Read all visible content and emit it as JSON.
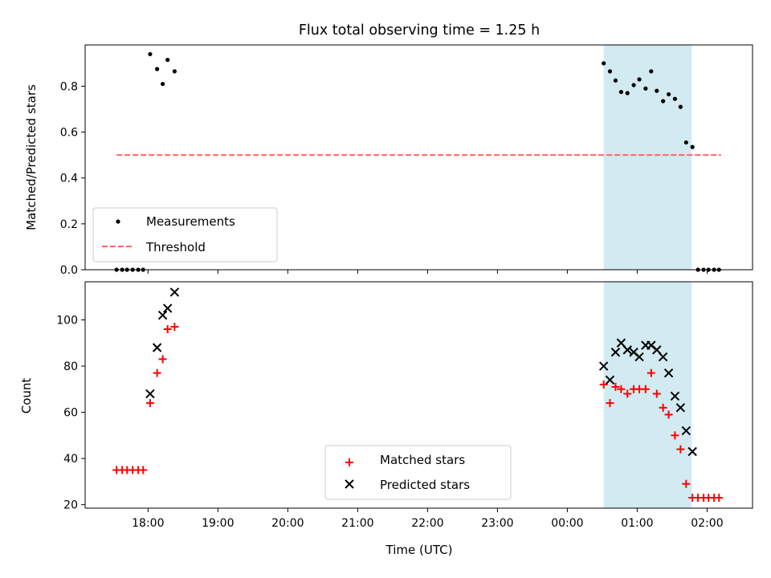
{
  "chart_data": [
    {
      "type": "scatter",
      "title": "Flux total observing time = 1.25 h",
      "xlabel": "",
      "ylabel": "Matched/Predicted stars",
      "x_unit": "hours since 17:00 UTC",
      "xlim": [
        0.1,
        9.65
      ],
      "ylim": [
        0.0,
        0.98
      ],
      "yticks": [
        "0.0",
        "0.2",
        "0.4",
        "0.6",
        "0.8"
      ],
      "ytick_values": [
        0.0,
        0.2,
        0.4,
        0.6,
        0.8
      ],
      "grid": false,
      "legend": "lower-left",
      "highlight_span": {
        "x0": 7.52,
        "x1": 8.78,
        "color": "#add8e6"
      },
      "series": [
        {
          "name": "Measurements",
          "kind": "dot",
          "color": "#000000",
          "x": [
            0.55,
            0.63,
            0.7,
            0.78,
            0.86,
            0.93,
            1.03,
            1.13,
            1.21,
            1.28,
            1.38,
            7.52,
            7.61,
            7.69,
            7.77,
            7.86,
            7.95,
            8.03,
            8.12,
            8.2,
            8.28,
            8.37,
            8.45,
            8.54,
            8.62,
            8.7,
            8.79,
            8.87,
            8.95,
            9.02,
            9.1,
            9.17
          ],
          "y": [
            0.0,
            0.0,
            0.0,
            0.0,
            0.0,
            0.0,
            0.94,
            0.875,
            0.81,
            0.915,
            0.865,
            0.9,
            0.865,
            0.825,
            0.775,
            0.77,
            0.805,
            0.83,
            0.79,
            0.865,
            0.78,
            0.735,
            0.765,
            0.745,
            0.71,
            0.555,
            0.535,
            0.0,
            0.0,
            0.0,
            0.0,
            0.0
          ]
        },
        {
          "name": "Threshold",
          "kind": "dashed-line",
          "color": "#ff6666",
          "x": [
            0.55,
            9.2
          ],
          "y": [
            0.5,
            0.5
          ]
        }
      ]
    },
    {
      "type": "scatter",
      "title": "",
      "xlabel": "Time (UTC)",
      "ylabel": "Count",
      "x_unit": "hours since 17:00 UTC",
      "xlim": [
        0.1,
        9.65
      ],
      "ylim": [
        18.5,
        116.5
      ],
      "yticks": [
        "20",
        "40",
        "60",
        "80",
        "100"
      ],
      "ytick_values": [
        20,
        40,
        60,
        80,
        100
      ],
      "xticks": [
        "18:00",
        "19:00",
        "20:00",
        "21:00",
        "22:00",
        "23:00",
        "00:00",
        "01:00",
        "02:00"
      ],
      "xtick_values": [
        1,
        2,
        3,
        4,
        5,
        6,
        7,
        8,
        9
      ],
      "grid": false,
      "legend": "lower-center",
      "highlight_span": {
        "x0": 7.52,
        "x1": 8.78,
        "color": "#add8e6"
      },
      "series": [
        {
          "name": "Matched stars",
          "kind": "plus",
          "color": "#ff0000",
          "x": [
            0.55,
            0.63,
            0.7,
            0.78,
            0.86,
            0.93,
            1.03,
            1.13,
            1.21,
            1.28,
            1.38,
            7.52,
            7.61,
            7.69,
            7.77,
            7.86,
            7.95,
            8.03,
            8.12,
            8.2,
            8.28,
            8.37,
            8.45,
            8.54,
            8.62,
            8.7,
            8.79,
            8.87,
            8.95,
            9.02,
            9.1,
            9.17
          ],
          "y": [
            35,
            35,
            35,
            35,
            35,
            35,
            64,
            77,
            83,
            96,
            97,
            72,
            64,
            71,
            70,
            68,
            70,
            70,
            70,
            77,
            68,
            62,
            59,
            50,
            44,
            29,
            23,
            23,
            23,
            23,
            23,
            23
          ]
        },
        {
          "name": "Predicted stars",
          "kind": "x",
          "color": "#000000",
          "x": [
            1.03,
            1.13,
            1.21,
            1.28,
            1.38,
            7.52,
            7.61,
            7.69,
            7.77,
            7.86,
            7.95,
            8.03,
            8.12,
            8.2,
            8.28,
            8.37,
            8.45,
            8.54,
            8.62,
            8.7,
            8.79
          ],
          "y": [
            68,
            88,
            102,
            105,
            112,
            80,
            74,
            86,
            90,
            87,
            86,
            84,
            89,
            89,
            87,
            84,
            77,
            67,
            62,
            52,
            43
          ]
        }
      ]
    }
  ]
}
